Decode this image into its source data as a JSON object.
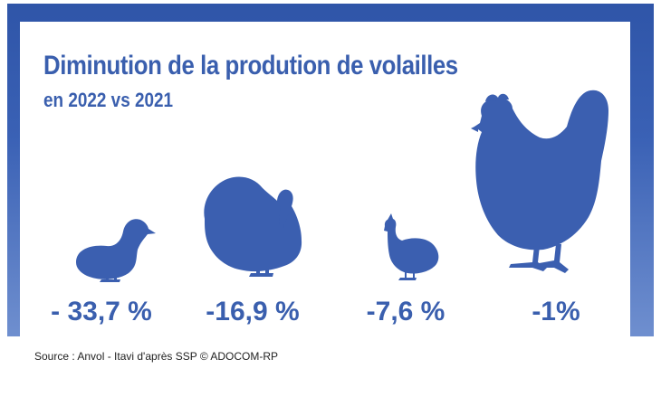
{
  "chart_data": {
    "type": "pictogram",
    "title": "Diminution de la prodution de volailles",
    "subtitle": "en 2022 vs 2021",
    "categories": [
      "duck-icon",
      "turkey-icon",
      "guinea-fowl-icon",
      "chicken-icon"
    ],
    "values": [
      -33.7,
      -16.9,
      -7.6,
      -1
    ],
    "value_labels": [
      "- 33,7 %",
      "-16,9 %",
      "-7,6 %",
      "-1%"
    ],
    "source": "Source : Anvol - Itavi d'après SSP © ADOCOM-RP",
    "colors": {
      "accent": "#3a5fae",
      "frame": "#2f55a8"
    }
  }
}
